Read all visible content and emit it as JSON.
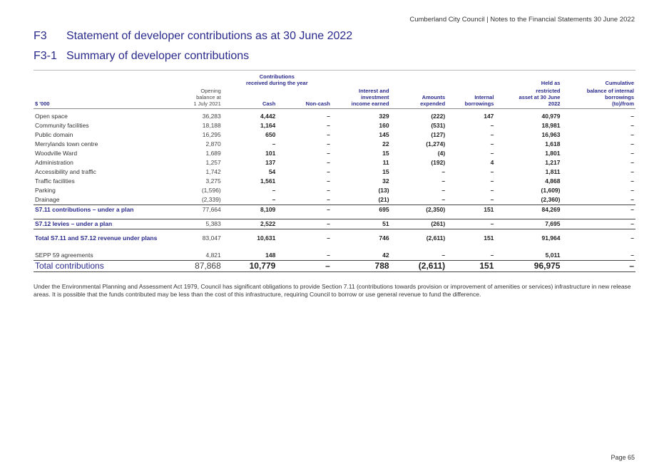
{
  "header": "Cumberland City Council | Notes to the Financial Statements 30 June 2022",
  "heading1": {
    "num": "F3",
    "text": "Statement of developer contributions as at 30 June 2022"
  },
  "heading2": {
    "num": "F3-1",
    "text": "Summary of developer contributions"
  },
  "columns": {
    "unit": "$ '000",
    "opening": [
      "Opening",
      "balance at",
      "1 July 2021"
    ],
    "contrib_group": [
      "Contributions",
      "received during the year"
    ],
    "cash": "Cash",
    "noncash": "Non-cash",
    "interest": [
      "Interest and",
      "investment",
      "income earned"
    ],
    "amounts": [
      "Amounts",
      "expended"
    ],
    "internal": [
      "Internal",
      "borrowings"
    ],
    "held": [
      "Held as",
      "restricted",
      "asset at 30 June",
      "2022"
    ],
    "cumulative": [
      "Cumulative",
      "balance of internal",
      "borrowings",
      "(to)/from"
    ]
  },
  "rows": [
    {
      "label": "Open space",
      "opening": "36,283",
      "cash": "4,442",
      "noncash": "–",
      "interest": "329",
      "expended": "(222)",
      "internal": "147",
      "held": "40,979",
      "cum": "–"
    },
    {
      "label": "Community facilities",
      "opening": "18,188",
      "cash": "1,164",
      "noncash": "–",
      "interest": "160",
      "expended": "(531)",
      "internal": "–",
      "held": "18,981",
      "cum": "–"
    },
    {
      "label": "Public domain",
      "opening": "16,295",
      "cash": "650",
      "noncash": "–",
      "interest": "145",
      "expended": "(127)",
      "internal": "–",
      "held": "16,963",
      "cum": "–"
    },
    {
      "label": "Merrylands town centre",
      "opening": "2,870",
      "cash": "–",
      "noncash": "–",
      "interest": "22",
      "expended": "(1,274)",
      "internal": "–",
      "held": "1,618",
      "cum": "–"
    },
    {
      "label": "Woodville Ward",
      "opening": "1,689",
      "cash": "101",
      "noncash": "–",
      "interest": "15",
      "expended": "(4)",
      "internal": "–",
      "held": "1,801",
      "cum": "–"
    },
    {
      "label": "Administration",
      "opening": "1,257",
      "cash": "137",
      "noncash": "–",
      "interest": "11",
      "expended": "(192)",
      "internal": "4",
      "held": "1,217",
      "cum": "–"
    },
    {
      "label": "Accessibility and traffic",
      "opening": "1,742",
      "cash": "54",
      "noncash": "–",
      "interest": "15",
      "expended": "–",
      "internal": "–",
      "held": "1,811",
      "cum": "–"
    },
    {
      "label": "Traffic facilities",
      "opening": "3,275",
      "cash": "1,561",
      "noncash": "–",
      "interest": "32",
      "expended": "–",
      "internal": "–",
      "held": "4,868",
      "cum": "–"
    },
    {
      "label": "Parking",
      "opening": "(1,596)",
      "cash": "–",
      "noncash": "–",
      "interest": "(13)",
      "expended": "–",
      "internal": "–",
      "held": "(1,609)",
      "cum": "–"
    },
    {
      "label": "Drainage",
      "opening": "(2,339)",
      "cash": "–",
      "noncash": "–",
      "interest": "(21)",
      "expended": "–",
      "internal": "–",
      "held": "(2,360)",
      "cum": "–"
    }
  ],
  "s711": {
    "label": "S7.11 contributions – under a plan",
    "opening": "77,664",
    "cash": "8,109",
    "noncash": "–",
    "interest": "695",
    "expended": "(2,350)",
    "internal": "151",
    "held": "84,269",
    "cum": "–"
  },
  "s712": {
    "label": "S7.12 levies – under a plan",
    "opening": "5,383",
    "cash": "2,522",
    "noncash": "–",
    "interest": "51",
    "expended": "(261)",
    "internal": "–",
    "held": "7,695",
    "cum": "–"
  },
  "total_plans": {
    "label": "Total S7.11 and S7.12 revenue under plans",
    "opening": "83,047",
    "cash": "10,631",
    "noncash": "–",
    "interest": "746",
    "expended": "(2,611)",
    "internal": "151",
    "held": "91,964",
    "cum": "–"
  },
  "sepp": {
    "label": "SEPP 59 agreements",
    "opening": "4,821",
    "cash": "148",
    "noncash": "–",
    "interest": "42",
    "expended": "–",
    "internal": "–",
    "held": "5,011",
    "cum": "–"
  },
  "total": {
    "label": "Total contributions",
    "opening": "87,868",
    "cash": "10,779",
    "noncash": "–",
    "interest": "788",
    "expended": "(2,611)",
    "internal": "151",
    "held": "96,975",
    "cum": "–"
  },
  "note": "Under the Environmental Planning and Assessment Act 1979, Council has significant obligations to provide Section 7.11 (contributions towards provision or improvement of amenities or services) infrastructure in new release areas. It is possible that the funds contributed may be less than the cost of this infrastructure, requiring Council to borrow or use general revenue to fund the difference.",
  "footer": "Page 65"
}
